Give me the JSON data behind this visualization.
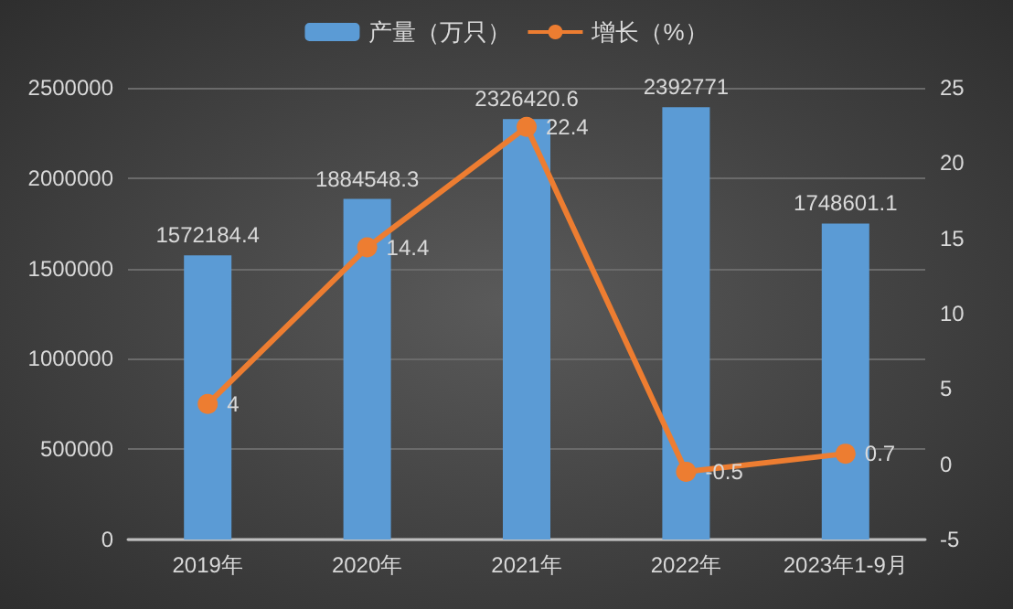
{
  "chart_data": {
    "type": "bar",
    "categories": [
      "2019年",
      "2020年",
      "2021年",
      "2022年",
      "2023年1-9月"
    ],
    "series": [
      {
        "name": "产量（万只）",
        "color": "#5b9bd5",
        "values": [
          1572184.4,
          1884548.3,
          2326420.6,
          2392771,
          1748601.1
        ]
      },
      {
        "name": "增长（%）",
        "type": "line",
        "axis": "y2",
        "color": "#ed7d31",
        "marker": "circle",
        "values": [
          4,
          14.4,
          22.4,
          -0.5,
          0.7
        ]
      }
    ],
    "ylim": [
      0,
      2500000
    ],
    "yticks": [
      0,
      500000,
      1000000,
      1500000,
      2000000,
      2500000
    ],
    "y2lim": [
      -5,
      25
    ],
    "y2ticks": [
      -5,
      0,
      5,
      10,
      15,
      20,
      25
    ],
    "data_labels": true,
    "grid": "y",
    "legend": "top"
  }
}
